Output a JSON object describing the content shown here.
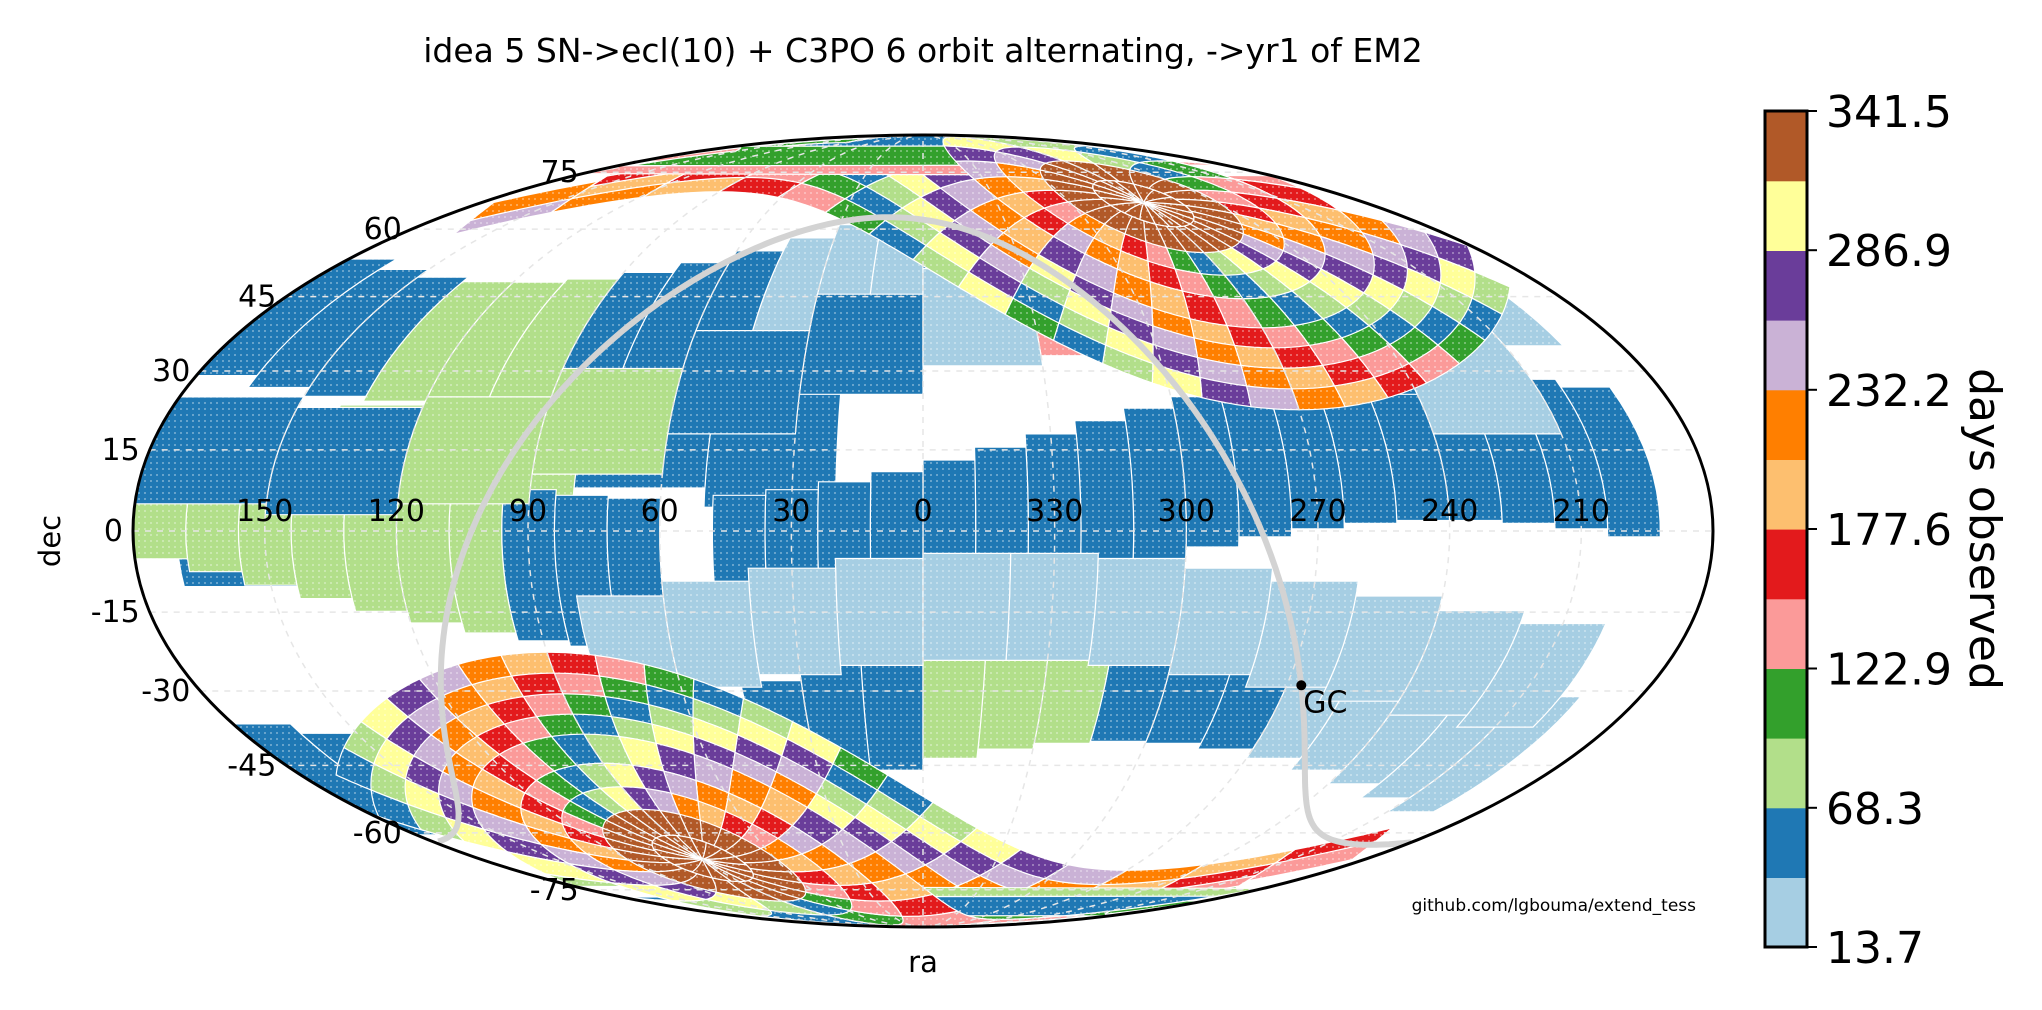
{
  "chart_data": {
    "type": "scatter",
    "projection": "mollweide",
    "title": "idea 5 SN->ecl(10) + C3PO 6 orbit alternating, ->yr1 of EM2",
    "xlabel": "ra",
    "ylabel": "dec",
    "ra_tick_labels": [
      "150",
      "120",
      "90",
      "60",
      "30",
      "0",
      "330",
      "300",
      "270",
      "240",
      "210"
    ],
    "dec_tick_labels": [
      "75",
      "60",
      "45",
      "30",
      "15",
      "0",
      "-15",
      "-30",
      "-45",
      "-60",
      "-75"
    ],
    "grid": true,
    "colorbar": {
      "label": "days observed",
      "tick_labels": [
        "341.5",
        "286.9",
        "232.2",
        "177.6",
        "122.9",
        "68.3",
        "13.7"
      ],
      "min": 13.7,
      "max": 341.5,
      "bins": 12,
      "colors": [
        "#a6cee3",
        "#1f78b4",
        "#b2df8a",
        "#33a02c",
        "#fb9a99",
        "#e31a1c",
        "#fdbf6f",
        "#ff7f00",
        "#cab2d6",
        "#6a3d9a",
        "#ffff99",
        "#b15928"
      ]
    },
    "annotation": {
      "text": "GC",
      "ra": 266.4,
      "dec": -28.9
    },
    "galactic_plane": "light gray curve",
    "credit": "github.com/lgbouma/extend_tess"
  }
}
